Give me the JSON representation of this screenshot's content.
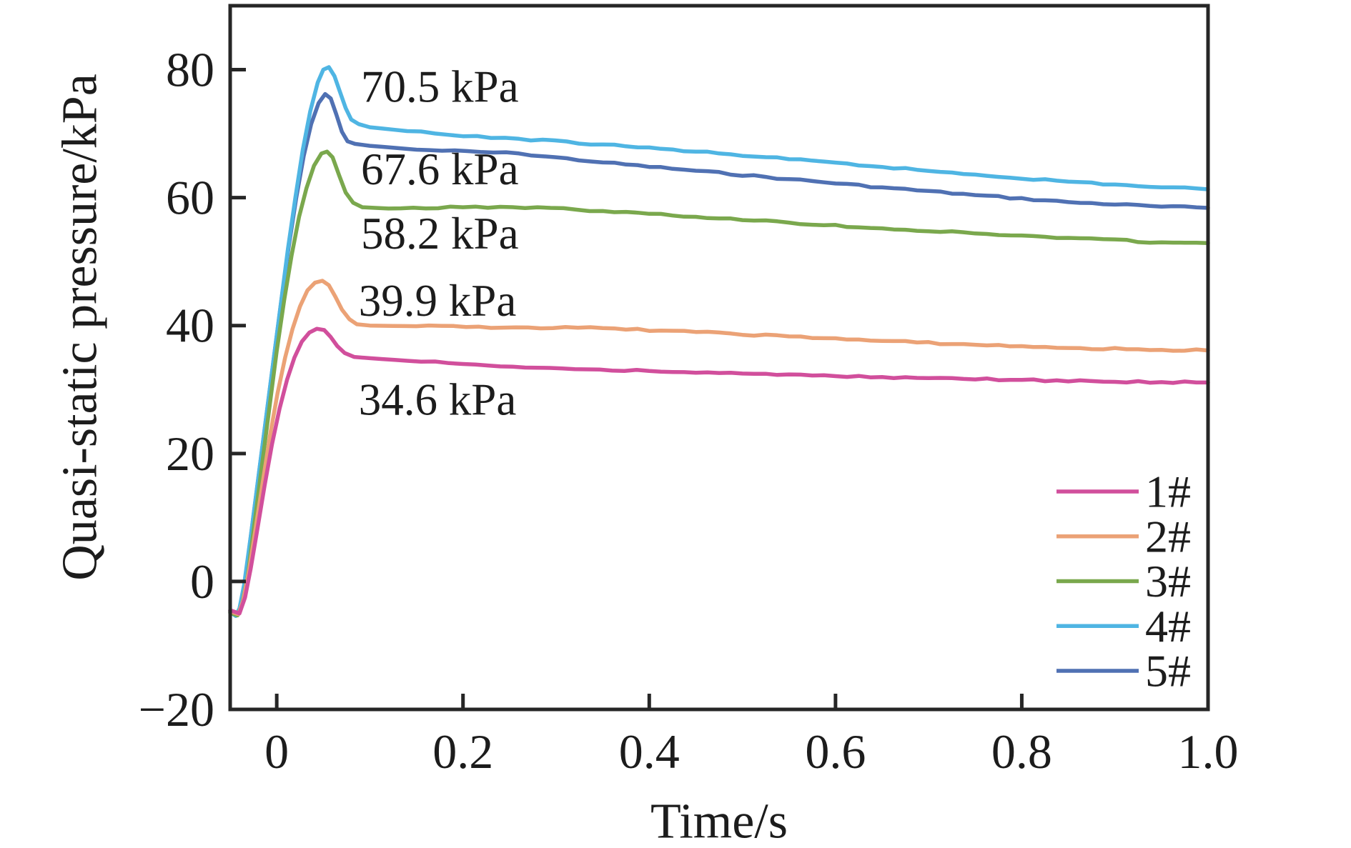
{
  "chart_data": {
    "type": "line",
    "title": "",
    "xlabel": "Time/s",
    "ylabel": "Quasi-static pressure/kPa",
    "xlim": [
      -0.05,
      1.0
    ],
    "ylim": [
      -20,
      90
    ],
    "grid": false,
    "legend_position": "lower right",
    "axis_color": "#262626",
    "xticks": [
      {
        "value": 0,
        "label": "0"
      },
      {
        "value": 0.2,
        "label": "0.2"
      },
      {
        "value": 0.4,
        "label": "0.4"
      },
      {
        "value": 0.6,
        "label": "0.6"
      },
      {
        "value": 0.8,
        "label": "0.8"
      },
      {
        "value": 1.0,
        "label": "1.0"
      }
    ],
    "yticks": [
      {
        "value": -20,
        "label": "−20"
      },
      {
        "value": 0,
        "label": "0"
      },
      {
        "value": 20,
        "label": "20"
      },
      {
        "value": 40,
        "label": "40"
      },
      {
        "value": 60,
        "label": "60"
      },
      {
        "value": 80,
        "label": "80"
      }
    ],
    "series": [
      {
        "name": "1#",
        "color": "#d14f9c",
        "quasi_static_value_kpa": 34.6,
        "points": [
          [
            -0.05,
            -4.5
          ],
          [
            -0.04,
            -5.0
          ],
          [
            -0.034,
            -2.5
          ],
          [
            -0.028,
            2
          ],
          [
            -0.021,
            8
          ],
          [
            -0.013,
            15
          ],
          [
            -0.005,
            21.5
          ],
          [
            0.003,
            27
          ],
          [
            0.011,
            31.5
          ],
          [
            0.019,
            35
          ],
          [
            0.027,
            37.5
          ],
          [
            0.035,
            38.9
          ],
          [
            0.043,
            39.5
          ],
          [
            0.051,
            39.3
          ],
          [
            0.058,
            38.2
          ],
          [
            0.065,
            36.8
          ],
          [
            0.073,
            35.7
          ],
          [
            0.083,
            35.1
          ],
          [
            0.1,
            34.9
          ],
          [
            0.14,
            34.5
          ],
          [
            0.2,
            34.0
          ],
          [
            0.28,
            33.4
          ],
          [
            0.4,
            32.9
          ],
          [
            0.5,
            32.5
          ],
          [
            0.6,
            32.1
          ],
          [
            0.7,
            31.8
          ],
          [
            0.8,
            31.5
          ],
          [
            0.9,
            31.2
          ],
          [
            1.0,
            31.1
          ]
        ]
      },
      {
        "name": "2#",
        "color": "#eba276",
        "quasi_static_value_kpa": 39.9,
        "points": [
          [
            -0.05,
            -4.7
          ],
          [
            -0.041,
            -5.1
          ],
          [
            -0.036,
            -3.0
          ],
          [
            -0.03,
            1.5
          ],
          [
            -0.023,
            8
          ],
          [
            -0.015,
            15.5
          ],
          [
            -0.007,
            23
          ],
          [
            0.001,
            29.5
          ],
          [
            0.009,
            35
          ],
          [
            0.017,
            39.5
          ],
          [
            0.025,
            43
          ],
          [
            0.033,
            45.5
          ],
          [
            0.041,
            46.7
          ],
          [
            0.049,
            47.0
          ],
          [
            0.056,
            46.3
          ],
          [
            0.063,
            44.5
          ],
          [
            0.07,
            42.5
          ],
          [
            0.078,
            41.0
          ],
          [
            0.086,
            40.2
          ],
          [
            0.1,
            40.0
          ],
          [
            0.15,
            39.9
          ],
          [
            0.27,
            39.7
          ],
          [
            0.35,
            39.6
          ],
          [
            0.45,
            39.0
          ],
          [
            0.55,
            38.3
          ],
          [
            0.65,
            37.6
          ],
          [
            0.75,
            37.0
          ],
          [
            0.85,
            36.5
          ],
          [
            0.95,
            36.2
          ],
          [
            1.0,
            36.1
          ]
        ]
      },
      {
        "name": "3#",
        "color": "#7aa84d",
        "quasi_static_value_kpa": 58.2,
        "points": [
          [
            -0.05,
            -4.9
          ],
          [
            -0.042,
            -5.3
          ],
          [
            -0.037,
            -3.5
          ],
          [
            -0.031,
            1
          ],
          [
            -0.024,
            9
          ],
          [
            -0.016,
            18
          ],
          [
            -0.008,
            27
          ],
          [
            0.0,
            36
          ],
          [
            0.008,
            44
          ],
          [
            0.016,
            51
          ],
          [
            0.024,
            57
          ],
          [
            0.032,
            61.5
          ],
          [
            0.04,
            65
          ],
          [
            0.048,
            66.9
          ],
          [
            0.054,
            67.2
          ],
          [
            0.06,
            66.3
          ],
          [
            0.067,
            63.5
          ],
          [
            0.074,
            60.8
          ],
          [
            0.082,
            59.2
          ],
          [
            0.092,
            58.5
          ],
          [
            0.12,
            58.3
          ],
          [
            0.2,
            58.5
          ],
          [
            0.28,
            58.5
          ],
          [
            0.35,
            57.9
          ],
          [
            0.45,
            57.0
          ],
          [
            0.55,
            56.1
          ],
          [
            0.65,
            55.2
          ],
          [
            0.75,
            54.4
          ],
          [
            0.85,
            53.7
          ],
          [
            0.95,
            53.0
          ],
          [
            1.0,
            52.9
          ]
        ]
      },
      {
        "name": "4#",
        "color": "#4fb5e3",
        "quasi_static_value_kpa": 70.5,
        "points": [
          [
            -0.05,
            -4.8
          ],
          [
            -0.044,
            -5.4
          ],
          [
            -0.04,
            -4.2
          ],
          [
            -0.035,
            -0.5
          ],
          [
            -0.028,
            7
          ],
          [
            -0.02,
            16
          ],
          [
            -0.012,
            25
          ],
          [
            -0.004,
            34
          ],
          [
            0.004,
            43
          ],
          [
            0.012,
            52
          ],
          [
            0.02,
            60
          ],
          [
            0.028,
            67.5
          ],
          [
            0.036,
            73.5
          ],
          [
            0.044,
            78
          ],
          [
            0.05,
            80
          ],
          [
            0.056,
            80.4
          ],
          [
            0.062,
            79
          ],
          [
            0.068,
            76.5
          ],
          [
            0.074,
            74
          ],
          [
            0.08,
            72.2
          ],
          [
            0.088,
            71.5
          ],
          [
            0.1,
            71.0
          ],
          [
            0.14,
            70.4
          ],
          [
            0.2,
            69.6
          ],
          [
            0.26,
            69.2
          ],
          [
            0.35,
            68.3
          ],
          [
            0.45,
            67.2
          ],
          [
            0.55,
            66.0
          ],
          [
            0.65,
            64.8
          ],
          [
            0.75,
            63.6
          ],
          [
            0.85,
            62.5
          ],
          [
            0.95,
            61.6
          ],
          [
            1.0,
            61.3
          ]
        ]
      },
      {
        "name": "5#",
        "color": "#5071b3",
        "quasi_static_value_kpa": 67.6,
        "points": [
          [
            -0.05,
            -4.6
          ],
          [
            -0.043,
            -5.2
          ],
          [
            -0.039,
            -4.0
          ],
          [
            -0.034,
            0
          ],
          [
            -0.027,
            8
          ],
          [
            -0.019,
            17
          ],
          [
            -0.011,
            26
          ],
          [
            -0.003,
            35
          ],
          [
            0.005,
            44
          ],
          [
            0.013,
            52.5
          ],
          [
            0.021,
            60
          ],
          [
            0.029,
            66.5
          ],
          [
            0.037,
            71.5
          ],
          [
            0.045,
            74.8
          ],
          [
            0.052,
            76.2
          ],
          [
            0.058,
            75.5
          ],
          [
            0.064,
            73
          ],
          [
            0.07,
            70.3
          ],
          [
            0.076,
            68.8
          ],
          [
            0.084,
            68.4
          ],
          [
            0.1,
            68.1
          ],
          [
            0.15,
            67.5
          ],
          [
            0.26,
            66.9
          ],
          [
            0.35,
            65.5
          ],
          [
            0.45,
            64.2
          ],
          [
            0.55,
            62.9
          ],
          [
            0.65,
            61.6
          ],
          [
            0.75,
            60.4
          ],
          [
            0.85,
            59.3
          ],
          [
            0.95,
            58.6
          ],
          [
            1.0,
            58.4
          ]
        ]
      }
    ],
    "annotations": [
      {
        "series": "4#",
        "text": "70.5 kPa",
        "color": "#4fb5e3",
        "t": 0.0905,
        "v": 77.3
      },
      {
        "series": "5#",
        "text": "67.6 kPa",
        "color": "#5071b3",
        "t": 0.0905,
        "v": 64.4
      },
      {
        "series": "3#",
        "text": "58.2 kPa",
        "color": "#7aa84d",
        "t": 0.0905,
        "v": 54.4
      },
      {
        "series": "2#",
        "text": "39.9 kPa",
        "color": "#eba276",
        "t": 0.088,
        "v": 43.9
      },
      {
        "series": "1#",
        "text": "34.6 kPa",
        "color": "#d14f9c",
        "t": 0.088,
        "v": 28.4
      }
    ]
  }
}
